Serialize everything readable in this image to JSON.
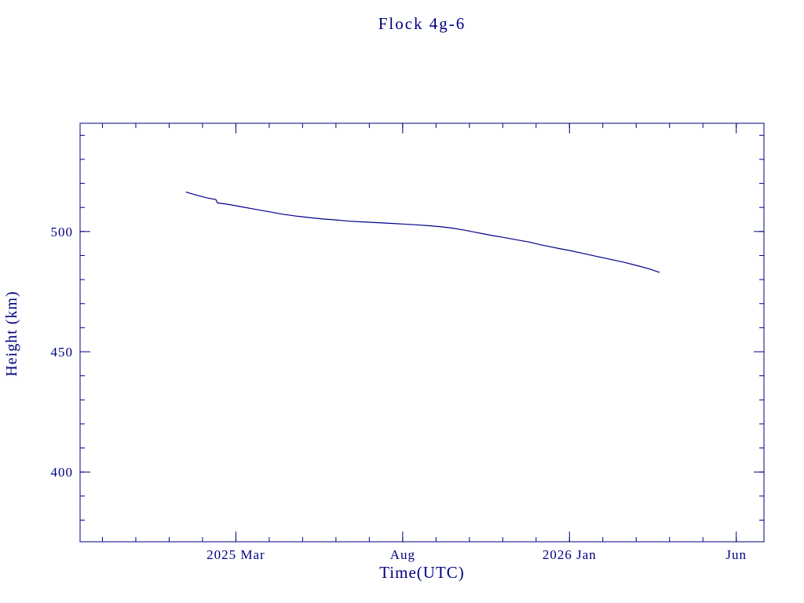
{
  "colors": {
    "axis": "#000080",
    "line": "#00008b",
    "background": "#ffffff"
  },
  "chart_data": {
    "type": "line",
    "title": "Flock 4g-6",
    "xlabel": "Time(UTC)",
    "ylabel": "Height (km)",
    "x_unit": "months since 2025-01-01",
    "xlim": [
      -2.67,
      17.83
    ],
    "ylim": [
      371,
      545
    ],
    "grid": false,
    "legend": "none",
    "x_major_ticks": [
      {
        "value": 2,
        "label": "2025 Mar"
      },
      {
        "value": 7,
        "label": "Aug"
      },
      {
        "value": 12,
        "label": "2026 Jan"
      },
      {
        "value": 17,
        "label": "Jun"
      }
    ],
    "x_minor_step": 1,
    "y_major_ticks": [
      {
        "value": 400,
        "label": "400"
      },
      {
        "value": 450,
        "label": "450"
      },
      {
        "value": 500,
        "label": "500"
      }
    ],
    "y_minor_step": 10,
    "series": [
      {
        "name": "Flock 4g-6 height",
        "x": [
          0.5,
          0.8,
          1.1,
          1.4,
          1.45,
          1.8,
          2.2,
          2.6,
          3.0,
          3.4,
          3.8,
          4.2,
          4.6,
          5.0,
          5.4,
          5.8,
          6.2,
          6.6,
          7.0,
          7.4,
          7.8,
          8.2,
          8.5,
          8.8,
          9.1,
          9.4,
          9.7,
          10.0,
          10.4,
          10.8,
          11.1,
          11.4,
          11.7,
          12.0,
          12.4,
          12.8,
          13.2,
          13.6,
          14.0,
          14.4,
          14.7
        ],
        "y": [
          516.4,
          515.2,
          514.1,
          513.3,
          511.9,
          511.2,
          510.2,
          509.2,
          508.2,
          507.2,
          506.4,
          505.8,
          505.2,
          504.8,
          504.3,
          504.0,
          503.7,
          503.4,
          503.1,
          502.8,
          502.4,
          501.9,
          501.4,
          500.7,
          499.9,
          499.1,
          498.3,
          497.6,
          496.6,
          495.6,
          494.6,
          493.7,
          492.9,
          492.1,
          490.9,
          489.7,
          488.5,
          487.3,
          485.9,
          484.4,
          483.0
        ]
      }
    ]
  }
}
